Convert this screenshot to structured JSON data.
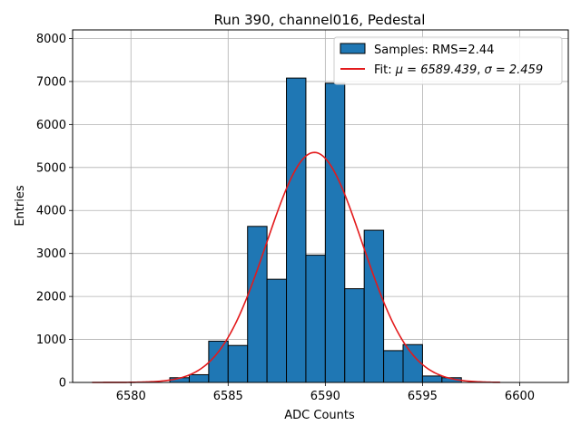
{
  "chart_data": {
    "type": "bar",
    "title": "Run 390, channel016, Pedestal",
    "xlabel": "ADC Counts",
    "ylabel": "Entries",
    "xlim": [
      6577,
      6602.5
    ],
    "ylim": [
      0,
      8200
    ],
    "xticks": [
      6580,
      6585,
      6590,
      6595,
      6600
    ],
    "yticks": [
      0,
      1000,
      2000,
      3000,
      4000,
      5000,
      6000,
      7000,
      8000
    ],
    "grid": true,
    "legend_position": "top-right",
    "histogram": {
      "name": "Samples: RMS=2.44",
      "color": "#1f77b4",
      "edgecolor": "#000000",
      "bin_edges": [
        6582,
        6583,
        6584,
        6585,
        6586,
        6587,
        6588,
        6589,
        6590,
        6591,
        6592,
        6593,
        6594,
        6595,
        6596,
        6597
      ],
      "counts": [
        110,
        180,
        960,
        860,
        3630,
        2400,
        7080,
        2960,
        6960,
        2180,
        3540,
        740,
        880,
        150,
        110
      ]
    },
    "fit": {
      "name": "Fit: μ = 6589.439, σ = 2.459",
      "label_prefix": "Fit: ",
      "mu_label": "μ = 6589.439",
      "sigma_label": "σ = 2.459",
      "color": "#e31a1c",
      "mu": 6589.439,
      "sigma": 2.459,
      "amplitude": 5350,
      "x_range": [
        6578,
        6599
      ]
    }
  }
}
